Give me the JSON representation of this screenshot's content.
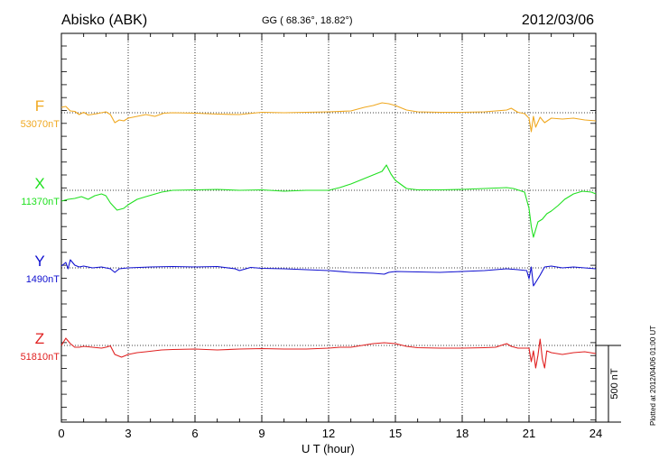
{
  "header": {
    "station": "Abisko (ABK)",
    "coords": "GG ( 68.36°,  18.82°)",
    "date": "2012/03/06"
  },
  "footer": {
    "xlabel": "U T (hour)",
    "plotted": "Plotted at 2012/04/06 01:00 UT",
    "scale_label": "500 nT"
  },
  "chart_data": {
    "type": "line",
    "title": "Abisko (ABK)",
    "xlabel": "U T (hour)",
    "ylabel": "",
    "xlim": [
      0,
      24
    ],
    "xticks": [
      0,
      3,
      6,
      9,
      12,
      15,
      18,
      21,
      24
    ],
    "xtick_labels": [
      "0",
      "3",
      "6",
      "9",
      "12",
      "15",
      "18",
      "21",
      "24"
    ],
    "scale_bar_nT": 500,
    "grid": true,
    "series": [
      {
        "name": "F",
        "baseline_label": "53070nT",
        "color": "#f0a820",
        "points": [
          [
            0,
            60
          ],
          [
            0.2,
            70
          ],
          [
            0.4,
            20
          ],
          [
            0.6,
            15
          ],
          [
            0.8,
            -20
          ],
          [
            1.0,
            5
          ],
          [
            1.2,
            -25
          ],
          [
            1.6,
            -10
          ],
          [
            2.0,
            10
          ],
          [
            2.2,
            -20
          ],
          [
            2.4,
            -110
          ],
          [
            2.6,
            -80
          ],
          [
            2.8,
            -90
          ],
          [
            3.0,
            -60
          ],
          [
            3.4,
            -40
          ],
          [
            3.8,
            -20
          ],
          [
            4.2,
            -40
          ],
          [
            4.6,
            -5
          ],
          [
            5.0,
            0
          ],
          [
            6.0,
            -5
          ],
          [
            7.0,
            -15
          ],
          [
            8.0,
            -20
          ],
          [
            9.0,
            5
          ],
          [
            10.0,
            0
          ],
          [
            11.0,
            5
          ],
          [
            12.0,
            10
          ],
          [
            13.0,
            20
          ],
          [
            13.6,
            60
          ],
          [
            14.0,
            80
          ],
          [
            14.4,
            110
          ],
          [
            14.7,
            100
          ],
          [
            15.0,
            80
          ],
          [
            15.5,
            30
          ],
          [
            16.0,
            10
          ],
          [
            17.0,
            5
          ],
          [
            18.0,
            5
          ],
          [
            19.0,
            10
          ],
          [
            19.5,
            20
          ],
          [
            20.0,
            30
          ],
          [
            20.2,
            50
          ],
          [
            20.5,
            5
          ],
          [
            20.8,
            -10
          ],
          [
            21.0,
            -60
          ],
          [
            21.1,
            -210
          ],
          [
            21.2,
            -40
          ],
          [
            21.3,
            -160
          ],
          [
            21.5,
            -50
          ],
          [
            21.7,
            -110
          ],
          [
            22.0,
            -60
          ],
          [
            22.5,
            -70
          ],
          [
            23.0,
            -60
          ],
          [
            23.5,
            -80
          ],
          [
            24.0,
            -90
          ]
        ]
      },
      {
        "name": "X",
        "baseline_label": "11370nT",
        "color": "#20e020",
        "points": [
          [
            0,
            -120
          ],
          [
            0.3,
            -100
          ],
          [
            0.6,
            -90
          ],
          [
            0.9,
            -70
          ],
          [
            1.2,
            -100
          ],
          [
            1.5,
            -60
          ],
          [
            1.8,
            -40
          ],
          [
            2.0,
            -60
          ],
          [
            2.2,
            -140
          ],
          [
            2.5,
            -220
          ],
          [
            2.8,
            -200
          ],
          [
            3.0,
            -160
          ],
          [
            3.4,
            -100
          ],
          [
            3.8,
            -70
          ],
          [
            4.5,
            -20
          ],
          [
            5.0,
            0
          ],
          [
            6.0,
            5
          ],
          [
            7.0,
            10
          ],
          [
            8.0,
            0
          ],
          [
            9.0,
            5
          ],
          [
            10.0,
            -10
          ],
          [
            11.0,
            0
          ],
          [
            12.0,
            0
          ],
          [
            12.5,
            30
          ],
          [
            13.0,
            70
          ],
          [
            13.5,
            120
          ],
          [
            14.0,
            170
          ],
          [
            14.4,
            210
          ],
          [
            14.6,
            280
          ],
          [
            14.8,
            180
          ],
          [
            15.0,
            110
          ],
          [
            15.5,
            20
          ],
          [
            16.0,
            5
          ],
          [
            17.0,
            5
          ],
          [
            18.0,
            10
          ],
          [
            19.0,
            20
          ],
          [
            20.0,
            30
          ],
          [
            20.3,
            20
          ],
          [
            20.8,
            -20
          ],
          [
            21.0,
            -200
          ],
          [
            21.1,
            -400
          ],
          [
            21.2,
            -520
          ],
          [
            21.4,
            -350
          ],
          [
            21.6,
            -320
          ],
          [
            21.8,
            -260
          ],
          [
            22.0,
            -230
          ],
          [
            22.3,
            -170
          ],
          [
            22.6,
            -100
          ],
          [
            23.0,
            -40
          ],
          [
            23.4,
            -10
          ],
          [
            23.8,
            -20
          ],
          [
            24.0,
            -40
          ]
        ]
      },
      {
        "name": "Y",
        "baseline_label": "1490nT",
        "color": "#1010d0",
        "points": [
          [
            0,
            20
          ],
          [
            0.2,
            60
          ],
          [
            0.3,
            -10
          ],
          [
            0.4,
            90
          ],
          [
            0.6,
            30
          ],
          [
            0.8,
            10
          ],
          [
            1.0,
            20
          ],
          [
            1.4,
            0
          ],
          [
            1.8,
            10
          ],
          [
            2.2,
            -10
          ],
          [
            2.4,
            -50
          ],
          [
            2.6,
            -10
          ],
          [
            3.0,
            0
          ],
          [
            4.0,
            10
          ],
          [
            5.0,
            15
          ],
          [
            6.0,
            10
          ],
          [
            7.0,
            15
          ],
          [
            7.8,
            -10
          ],
          [
            8.0,
            -30
          ],
          [
            8.5,
            5
          ],
          [
            9.0,
            -5
          ],
          [
            10.0,
            -10
          ],
          [
            11.0,
            -20
          ],
          [
            12.0,
            -30
          ],
          [
            13.0,
            -50
          ],
          [
            14.0,
            -60
          ],
          [
            14.5,
            -70
          ],
          [
            14.7,
            -50
          ],
          [
            15.0,
            -40
          ],
          [
            16.0,
            -45
          ],
          [
            17.0,
            -50
          ],
          [
            18.0,
            -40
          ],
          [
            19.0,
            -30
          ],
          [
            20.0,
            -10
          ],
          [
            20.5,
            -20
          ],
          [
            20.9,
            -30
          ],
          [
            21.0,
            -120
          ],
          [
            21.1,
            10
          ],
          [
            21.2,
            -200
          ],
          [
            21.4,
            -120
          ],
          [
            21.5,
            -80
          ],
          [
            21.7,
            10
          ],
          [
            22.0,
            20
          ],
          [
            22.5,
            0
          ],
          [
            23.0,
            10
          ],
          [
            23.5,
            0
          ],
          [
            24.0,
            -10
          ]
        ]
      },
      {
        "name": "Z",
        "baseline_label": "51810nT",
        "color": "#e02020",
        "points": [
          [
            0,
            0
          ],
          [
            0.2,
            80
          ],
          [
            0.4,
            20
          ],
          [
            0.6,
            -20
          ],
          [
            0.8,
            -20
          ],
          [
            1.0,
            -10
          ],
          [
            1.4,
            -20
          ],
          [
            1.8,
            -30
          ],
          [
            2.0,
            -20
          ],
          [
            2.2,
            -5
          ],
          [
            2.4,
            -100
          ],
          [
            2.7,
            -130
          ],
          [
            3.0,
            -100
          ],
          [
            3.4,
            -80
          ],
          [
            3.8,
            -70
          ],
          [
            4.5,
            -50
          ],
          [
            5.0,
            -45
          ],
          [
            6.0,
            -40
          ],
          [
            7.0,
            -50
          ],
          [
            8.0,
            -40
          ],
          [
            9.0,
            -35
          ],
          [
            10.0,
            -40
          ],
          [
            11.0,
            -40
          ],
          [
            12.0,
            -30
          ],
          [
            12.5,
            -20
          ],
          [
            13.0,
            -20
          ],
          [
            13.5,
            0
          ],
          [
            14.0,
            20
          ],
          [
            14.5,
            30
          ],
          [
            15.0,
            20
          ],
          [
            15.5,
            -10
          ],
          [
            16.0,
            -25
          ],
          [
            17.0,
            -30
          ],
          [
            18.0,
            -30
          ],
          [
            19.0,
            -25
          ],
          [
            19.5,
            -20
          ],
          [
            20.0,
            20
          ],
          [
            20.2,
            -10
          ],
          [
            20.5,
            -30
          ],
          [
            21.0,
            -30
          ],
          [
            21.1,
            -180
          ],
          [
            21.2,
            -60
          ],
          [
            21.3,
            -250
          ],
          [
            21.4,
            -110
          ],
          [
            21.5,
            70
          ],
          [
            21.6,
            -150
          ],
          [
            21.7,
            -250
          ],
          [
            21.8,
            -60
          ],
          [
            22.0,
            -80
          ],
          [
            22.5,
            -100
          ],
          [
            23.0,
            -80
          ],
          [
            23.5,
            -70
          ],
          [
            24.0,
            -90
          ]
        ]
      }
    ]
  }
}
